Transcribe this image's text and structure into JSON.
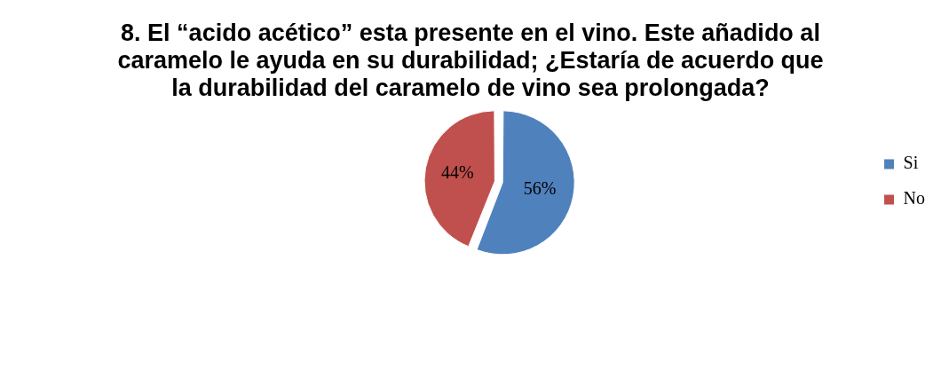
{
  "chart_data": {
    "type": "pie",
    "title": "8.     El “acido acético” esta presente en el vino. Este añadido al caramelo le ayuda en su durabilidad; ¿Estaría de acuerdo que la durabilidad del caramelo de vino sea prolongada?",
    "categories": [
      "Si",
      "No"
    ],
    "values": [
      56,
      44
    ],
    "colors": [
      "#4f81bd",
      "#c0504d"
    ],
    "value_labels": [
      "56%",
      "44%"
    ],
    "legend": "right"
  }
}
